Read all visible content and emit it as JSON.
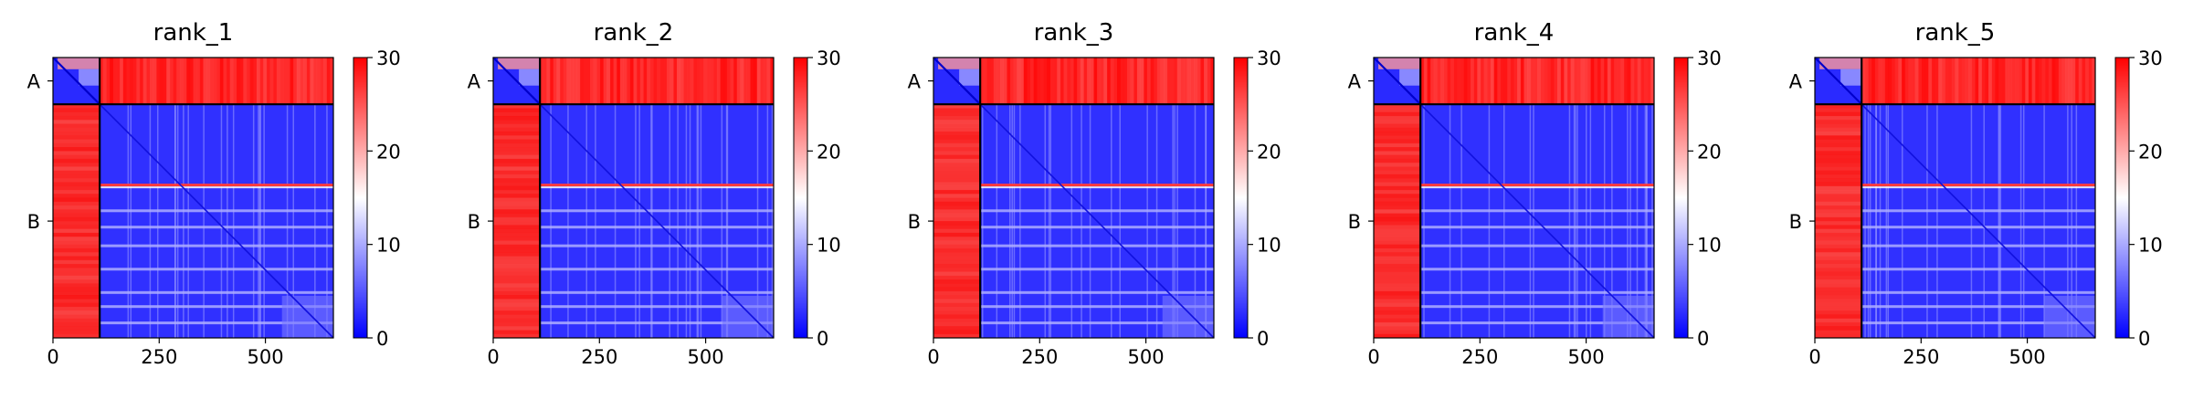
{
  "chart_data": [
    {
      "type": "heatmap",
      "title": "rank_1",
      "x_ticks": [
        "0",
        "250",
        "500"
      ],
      "y_ticks": [
        "A",
        "B"
      ],
      "chain_boundary": 110,
      "matrix_size": 660,
      "colorbar": {
        "ticks": [
          "0",
          "10",
          "20",
          "30"
        ],
        "range": [
          0,
          30
        ],
        "cmap": [
          "#0000ff",
          "#ffffff",
          "#ff0000"
        ]
      }
    },
    {
      "type": "heatmap",
      "title": "rank_2",
      "x_ticks": [
        "0",
        "250",
        "500"
      ],
      "y_ticks": [
        "A",
        "B"
      ],
      "chain_boundary": 110,
      "matrix_size": 660,
      "colorbar": {
        "ticks": [
          "0",
          "10",
          "20",
          "30"
        ],
        "range": [
          0,
          30
        ],
        "cmap": [
          "#0000ff",
          "#ffffff",
          "#ff0000"
        ]
      }
    },
    {
      "type": "heatmap",
      "title": "rank_3",
      "x_ticks": [
        "0",
        "250",
        "500"
      ],
      "y_ticks": [
        "A",
        "B"
      ],
      "chain_boundary": 110,
      "matrix_size": 660,
      "colorbar": {
        "ticks": [
          "0",
          "10",
          "20",
          "30"
        ],
        "range": [
          0,
          30
        ],
        "cmap": [
          "#0000ff",
          "#ffffff",
          "#ff0000"
        ]
      }
    },
    {
      "type": "heatmap",
      "title": "rank_4",
      "x_ticks": [
        "0",
        "250",
        "500"
      ],
      "y_ticks": [
        "A",
        "B"
      ],
      "chain_boundary": 110,
      "matrix_size": 660,
      "colorbar": {
        "ticks": [
          "0",
          "10",
          "20",
          "30"
        ],
        "range": [
          0,
          30
        ],
        "cmap": [
          "#0000ff",
          "#ffffff",
          "#ff0000"
        ]
      }
    },
    {
      "type": "heatmap",
      "title": "rank_5",
      "x_ticks": [
        "0",
        "250",
        "500"
      ],
      "y_ticks": [
        "A",
        "B"
      ],
      "chain_boundary": 110,
      "matrix_size": 660,
      "colorbar": {
        "ticks": [
          "0",
          "10",
          "20",
          "30"
        ],
        "range": [
          0,
          30
        ],
        "cmap": [
          "#0000ff",
          "#ffffff",
          "#ff0000"
        ]
      }
    }
  ]
}
